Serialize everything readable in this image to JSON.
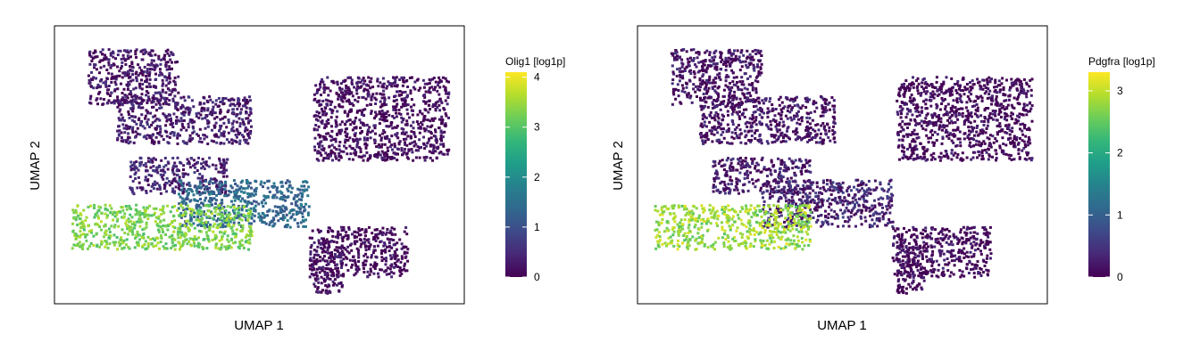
{
  "chart_data": [
    {
      "type": "scatter",
      "title": "",
      "xlabel": "UMAP 1",
      "ylabel": "UMAP 2",
      "legend": {
        "title": "Olig1 [log1p]",
        "ticks": [
          "0",
          "1",
          "2",
          "3",
          "4"
        ],
        "tick_values": [
          0,
          1,
          2,
          3,
          4
        ],
        "range": [
          0,
          4.1
        ],
        "colormap": "viridis",
        "placement": "right"
      },
      "series": [
        {
          "clusters": [
            {
              "region": "upper-left arm",
              "x": [
                0.08,
                0.3
              ],
              "y": [
                0.72,
                0.92
              ],
              "value": 0.2
            },
            {
              "region": "upper-middle arm",
              "x": [
                0.15,
                0.48
              ],
              "y": [
                0.58,
                0.75
              ],
              "value": 0.3
            },
            {
              "region": "right lobe",
              "x": [
                0.63,
                0.96
              ],
              "y": [
                0.52,
                0.82
              ],
              "value": 0.1
            },
            {
              "region": "center band",
              "x": [
                0.18,
                0.42
              ],
              "y": [
                0.4,
                0.53
              ],
              "value": 0.4
            },
            {
              "region": "center junction",
              "x": [
                0.3,
                0.62
              ],
              "y": [
                0.28,
                0.45
              ],
              "value": 1.4
            },
            {
              "region": "lower-left streak",
              "x": [
                0.04,
                0.48
              ],
              "y": [
                0.2,
                0.36
              ],
              "value": 3.3
            },
            {
              "region": "lower tail",
              "x": [
                0.62,
                0.86
              ],
              "y": [
                0.1,
                0.28
              ],
              "value": 0.1
            },
            {
              "region": "lower stem",
              "x": [
                0.63,
                0.7
              ],
              "y": [
                0.04,
                0.22
              ],
              "value": 0.1
            }
          ]
        }
      ]
    },
    {
      "type": "scatter",
      "title": "",
      "xlabel": "UMAP 1",
      "ylabel": "UMAP 2",
      "legend": {
        "title": "Pdgfra [log1p]",
        "ticks": [
          "0",
          "1",
          "2",
          "3"
        ],
        "tick_values": [
          0,
          1,
          2,
          3
        ],
        "range": [
          0,
          3.3
        ],
        "colormap": "viridis",
        "placement": "right"
      },
      "series": [
        {
          "clusters": [
            {
              "region": "upper-left arm",
              "x": [
                0.08,
                0.3
              ],
              "y": [
                0.72,
                0.92
              ],
              "value": 0.1
            },
            {
              "region": "upper-middle arm",
              "x": [
                0.15,
                0.48
              ],
              "y": [
                0.58,
                0.75
              ],
              "value": 0.1
            },
            {
              "region": "right lobe",
              "x": [
                0.63,
                0.96
              ],
              "y": [
                0.52,
                0.82
              ],
              "value": 0.0
            },
            {
              "region": "center band",
              "x": [
                0.18,
                0.42
              ],
              "y": [
                0.4,
                0.53
              ],
              "value": 0.2
            },
            {
              "region": "center junction",
              "x": [
                0.3,
                0.62
              ],
              "y": [
                0.28,
                0.45
              ],
              "value": 0.3
            },
            {
              "region": "lower-left streak",
              "x": [
                0.04,
                0.42
              ],
              "y": [
                0.2,
                0.36
              ],
              "value": 2.8
            },
            {
              "region": "lower tail",
              "x": [
                0.62,
                0.86
              ],
              "y": [
                0.1,
                0.28
              ],
              "value": 0.0
            },
            {
              "region": "lower stem",
              "x": [
                0.63,
                0.7
              ],
              "y": [
                0.04,
                0.22
              ],
              "value": 0.0
            }
          ]
        }
      ]
    }
  ]
}
